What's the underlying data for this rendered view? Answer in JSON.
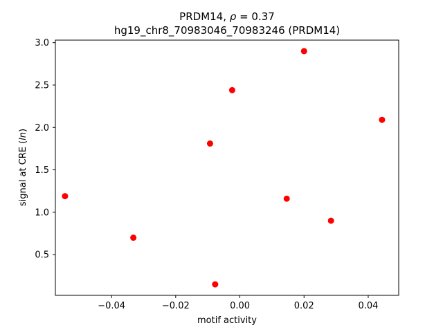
{
  "chart_data": {
    "type": "scatter",
    "title_parts": {
      "name": "PRDM14, ",
      "rho": "ρ",
      "eq": " = 0.37"
    },
    "subtitle": "hg19_chr8_70983046_70983246 (PRDM14)",
    "xlabel": "motif activity",
    "ylabel_parts": {
      "pre": "signal at CRE (",
      "italic": "ln",
      "post": ")"
    },
    "xlim": [
      -0.0575,
      0.0495
    ],
    "ylim": [
      0.02,
      3.03
    ],
    "xticks": [
      -0.04,
      -0.02,
      0.0,
      0.02,
      0.04
    ],
    "xtick_labels": [
      "−0.04",
      "−0.02",
      "0.00",
      "0.02",
      "0.04"
    ],
    "yticks": [
      0.5,
      1.0,
      1.5,
      2.0,
      2.5,
      3.0
    ],
    "ytick_labels": [
      "0.5",
      "1.0",
      "1.5",
      "2.0",
      "2.5",
      "3.0"
    ],
    "grid": false,
    "marker_color": "#ff0000",
    "points": [
      {
        "x": -0.0545,
        "y": 1.19
      },
      {
        "x": -0.0332,
        "y": 0.7
      },
      {
        "x": -0.0093,
        "y": 1.81
      },
      {
        "x": -0.0077,
        "y": 0.15
      },
      {
        "x": -0.0024,
        "y": 2.44
      },
      {
        "x": 0.0146,
        "y": 1.16
      },
      {
        "x": 0.02,
        "y": 2.9
      },
      {
        "x": 0.0284,
        "y": 0.9
      },
      {
        "x": 0.0443,
        "y": 2.09
      }
    ]
  }
}
